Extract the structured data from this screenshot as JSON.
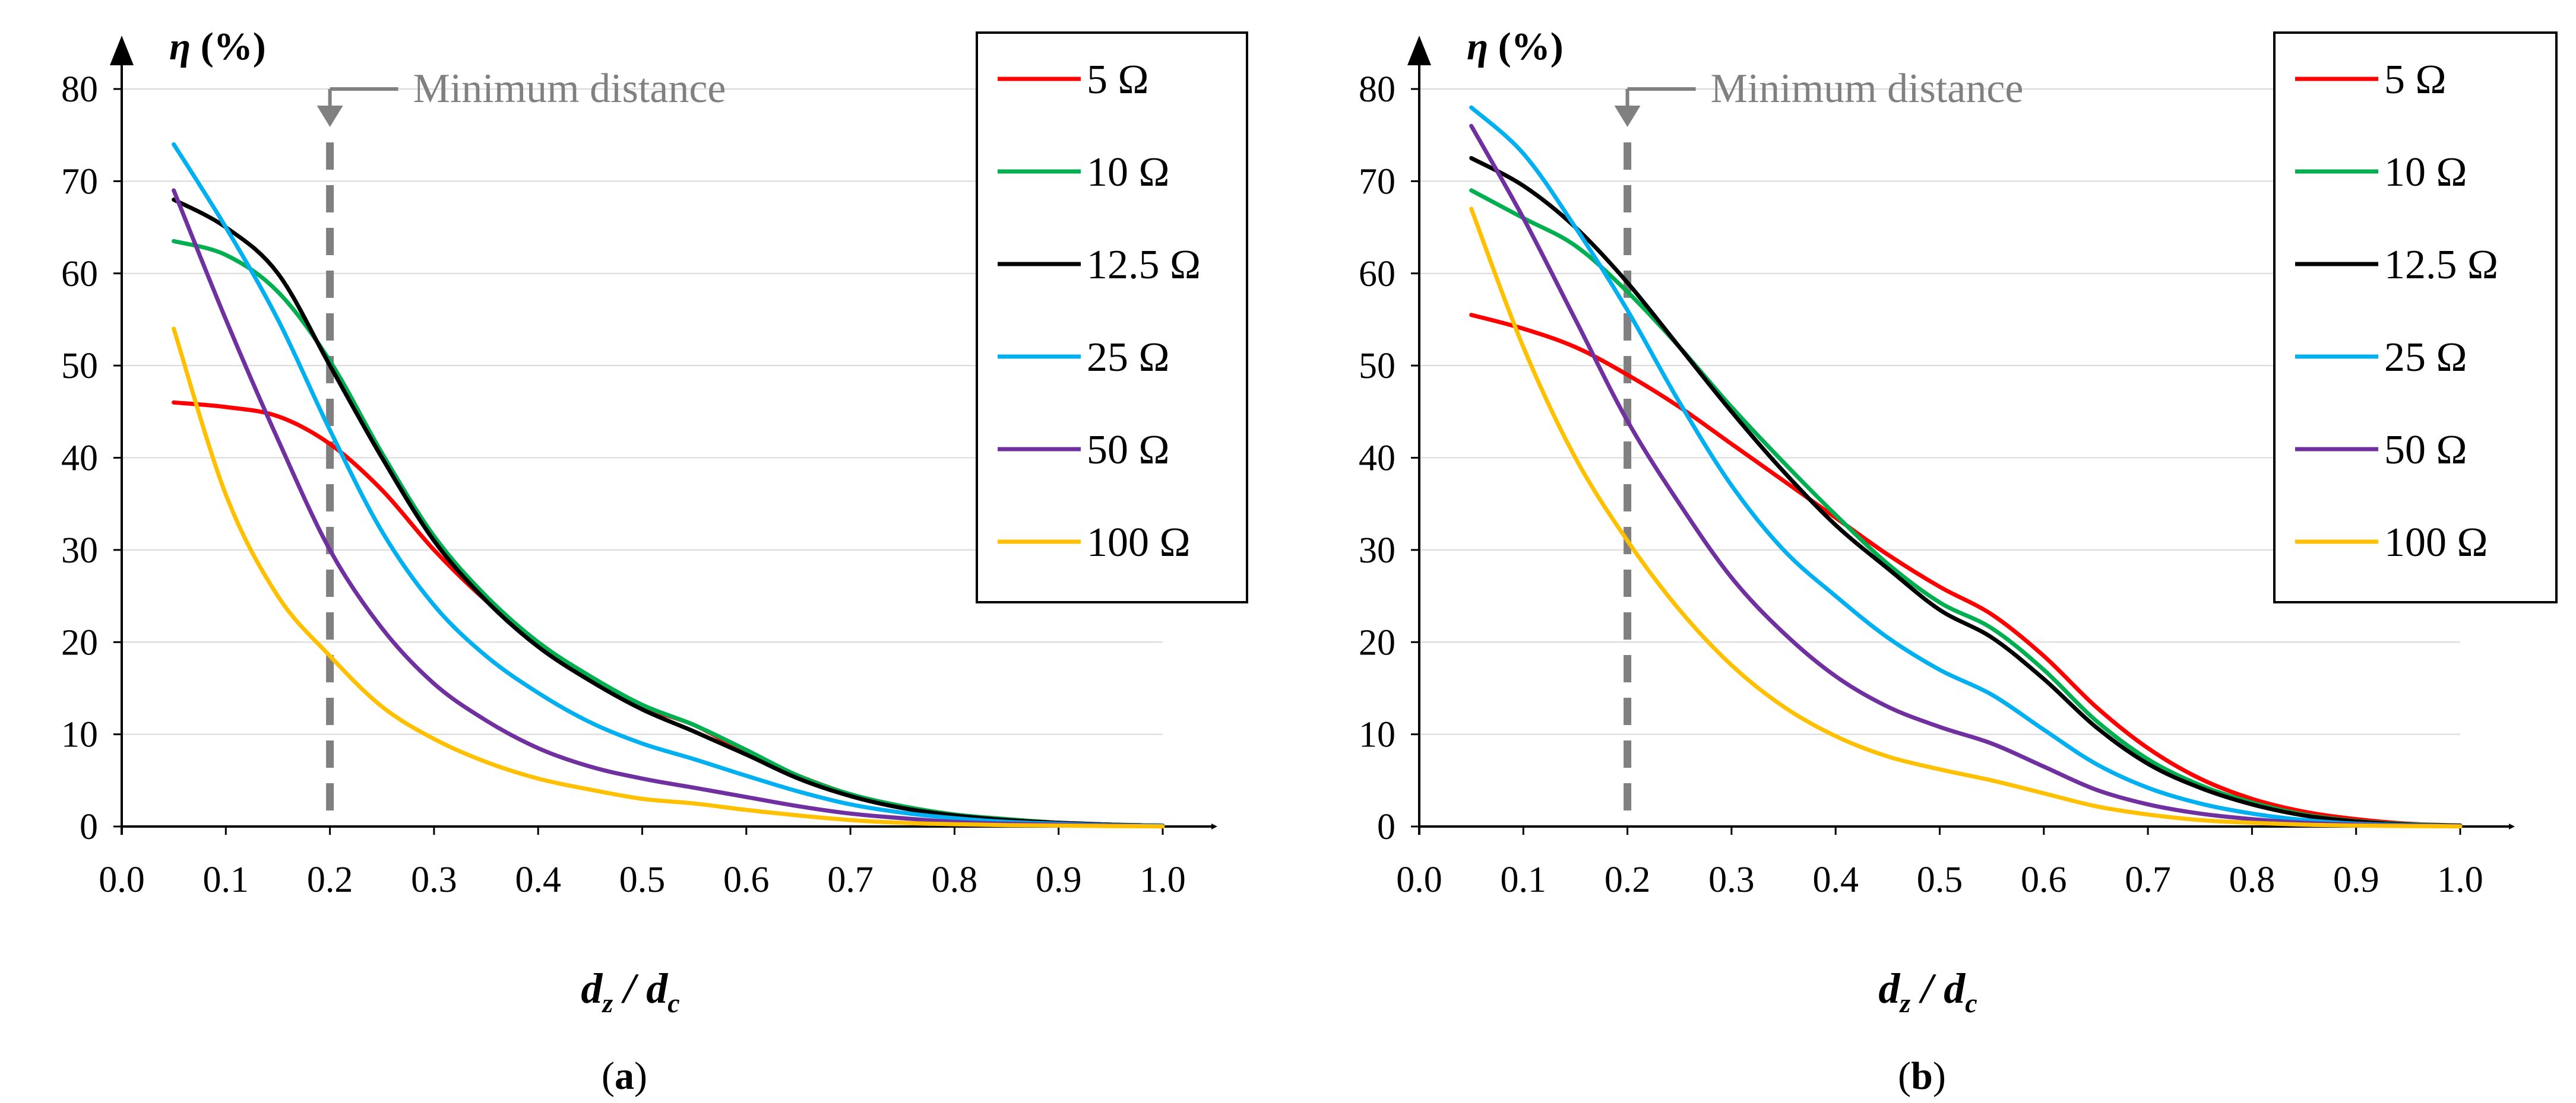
{
  "chart_data": [
    {
      "type": "line",
      "panel_label": "a",
      "xlabel": {
        "main": "d",
        "sub1": "z",
        "sep": " / ",
        "main2": "d",
        "sub2": "c"
      },
      "ylabel": {
        "symbol": "η",
        "unit": " (%)"
      },
      "xlim": [
        0,
        1.0
      ],
      "ylim": [
        0,
        80
      ],
      "xticks": [
        "0.0",
        "0.1",
        "0.2",
        "0.3",
        "0.4",
        "0.5",
        "0.6",
        "0.7",
        "0.8",
        "0.9",
        "1.0"
      ],
      "yticks": [
        "0",
        "10",
        "20",
        "30",
        "40",
        "50",
        "60",
        "70",
        "80"
      ],
      "grid": "horizontal",
      "annotation": {
        "text": "Minimum distance",
        "x": 0.2
      },
      "legend_position": "top-right",
      "x": [
        0.05,
        0.1,
        0.15,
        0.2,
        0.25,
        0.3,
        0.35,
        0.4,
        0.45,
        0.5,
        0.55,
        0.6,
        0.65,
        0.7,
        0.75,
        0.8,
        0.85,
        0.9,
        0.95,
        1.0
      ],
      "series": [
        {
          "name": "5 Ω",
          "color": "#ff0000",
          "values": [
            46,
            45.5,
            44.5,
            41.5,
            36.5,
            30,
            24.5,
            20,
            16,
            13,
            11,
            8,
            5.5,
            3.5,
            2.2,
            1.3,
            0.8,
            0.4,
            0.2,
            0.1
          ]
        },
        {
          "name": "10 Ω",
          "color": "#00b050",
          "values": [
            63.5,
            62,
            58,
            50.5,
            40.5,
            31.5,
            25,
            20,
            16.3,
            13.2,
            11,
            8.3,
            5.5,
            3.5,
            2.2,
            1.3,
            0.8,
            0.4,
            0.2,
            0.1
          ]
        },
        {
          "name": "12.5 Ω",
          "color": "#000000",
          "values": [
            68,
            65,
            60,
            50,
            40,
            31,
            24.5,
            19.5,
            15.8,
            12.7,
            10.3,
            7.8,
            5.2,
            3.3,
            2,
            1.2,
            0.7,
            0.4,
            0.2,
            0.1
          ]
        },
        {
          "name": "25 Ω",
          "color": "#00b0f0",
          "values": [
            74,
            65,
            55,
            43,
            32,
            24,
            18.5,
            14.5,
            11.3,
            9,
            7.3,
            5.5,
            3.8,
            2.4,
            1.5,
            0.9,
            0.5,
            0.3,
            0.15,
            0.1
          ]
        },
        {
          "name": "50 Ω",
          "color": "#7030a0",
          "values": [
            69,
            55,
            42,
            30,
            21.5,
            15.5,
            11.5,
            8.5,
            6.5,
            5.2,
            4.2,
            3.2,
            2.2,
            1.4,
            0.9,
            0.5,
            0.3,
            0.2,
            0.1,
            0.05
          ]
        },
        {
          "name": "100 Ω",
          "color": "#ffc000",
          "values": [
            54,
            36,
            25,
            18.5,
            13,
            9.5,
            7,
            5.2,
            4,
            3,
            2.5,
            1.8,
            1.2,
            0.7,
            0.4,
            0.25,
            0.15,
            0.1,
            0.05,
            0.02
          ]
        }
      ]
    },
    {
      "type": "line",
      "panel_label": "b",
      "xlabel": {
        "main": "d",
        "sub1": "z",
        "sep": " / ",
        "main2": "d",
        "sub2": "c"
      },
      "ylabel": {
        "symbol": "η",
        "unit": " (%)"
      },
      "xlim": [
        0,
        1.0
      ],
      "ylim": [
        0,
        80
      ],
      "xticks": [
        "0.0",
        "0.1",
        "0.2",
        "0.3",
        "0.4",
        "0.5",
        "0.6",
        "0.7",
        "0.8",
        "0.9",
        "1.0"
      ],
      "yticks": [
        "0",
        "10",
        "20",
        "30",
        "40",
        "50",
        "60",
        "70",
        "80"
      ],
      "grid": "horizontal",
      "annotation": {
        "text": "Minimum distance",
        "x": 0.2
      },
      "legend_position": "top-right",
      "x": [
        0.05,
        0.1,
        0.15,
        0.2,
        0.25,
        0.3,
        0.35,
        0.4,
        0.45,
        0.5,
        0.55,
        0.6,
        0.65,
        0.7,
        0.75,
        0.8,
        0.85,
        0.9,
        0.95,
        1.0
      ],
      "series": [
        {
          "name": "5 Ω",
          "color": "#ff0000",
          "values": [
            55.5,
            54,
            52,
            49,
            45.5,
            41.5,
            37.5,
            33.5,
            29.5,
            26,
            23,
            18.5,
            13,
            8.5,
            5.2,
            3,
            1.6,
            0.8,
            0.3,
            0.1
          ]
        },
        {
          "name": "10 Ω",
          "color": "#00b050",
          "values": [
            69,
            66,
            63,
            58,
            52,
            45.5,
            39.5,
            33.8,
            28.5,
            24.3,
            21.5,
            17,
            11.5,
            7.3,
            4.5,
            2.6,
            1.3,
            0.6,
            0.25,
            0.1
          ]
        },
        {
          "name": "12.5 Ω",
          "color": "#000000",
          "values": [
            72.5,
            69.5,
            65,
            59,
            52,
            45,
            38.5,
            32.7,
            28,
            23.5,
            20.5,
            16,
            10.8,
            6.8,
            4.2,
            2.4,
            1.2,
            0.55,
            0.2,
            0.1
          ]
        },
        {
          "name": "25 Ω",
          "color": "#00b0f0",
          "values": [
            78,
            73,
            65,
            56,
            46,
            37,
            30,
            25,
            20.5,
            17,
            14.3,
            10.5,
            6.8,
            4.2,
            2.5,
            1.4,
            0.7,
            0.3,
            0.15,
            0.05
          ]
        },
        {
          "name": "50 Ω",
          "color": "#7030a0",
          "values": [
            76,
            66,
            55,
            44,
            35,
            27,
            21,
            16.3,
            13,
            10.8,
            9,
            6.5,
            4,
            2.4,
            1.4,
            0.8,
            0.4,
            0.2,
            0.1,
            0.05
          ]
        },
        {
          "name": "100 Ω",
          "color": "#ffc000",
          "values": [
            67,
            52,
            40,
            31,
            23.5,
            17.5,
            13,
            9.8,
            7.6,
            6.2,
            5,
            3.6,
            2.2,
            1.3,
            0.7,
            0.4,
            0.2,
            0.1,
            0.05,
            0.02
          ]
        }
      ]
    }
  ]
}
